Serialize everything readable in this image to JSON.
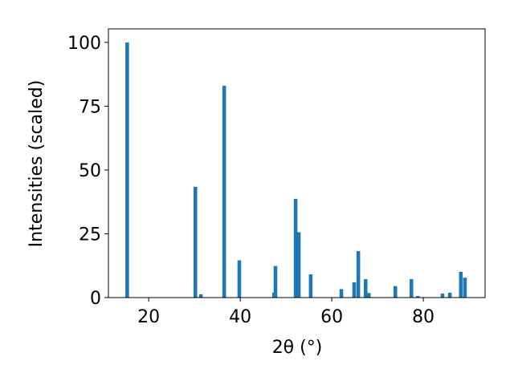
{
  "chart_data": {
    "type": "bar",
    "xlabel": "2θ (°)",
    "ylabel": "Intensities (scaled)",
    "x": [
      15.3,
      30.2,
      31.4,
      36.5,
      39.8,
      47.4,
      47.7,
      52.1,
      52.8,
      55.4,
      62.1,
      64.9,
      65.8,
      67.4,
      68.1,
      73.9,
      77.4,
      78.8,
      84.2,
      85.8,
      88.2,
      89.1
    ],
    "values": [
      100,
      43.4,
      1.3,
      83,
      14.6,
      2,
      12.4,
      38.7,
      25.6,
      9.1,
      3.3,
      6,
      18.2,
      7.2,
      1.8,
      4.5,
      7.2,
      0.6,
      1.6,
      1.9,
      10.1,
      7.8
    ],
    "color": "#1f77b4",
    "xlim": [
      11.2,
      93.5
    ],
    "xticks": [
      20,
      40,
      60,
      80
    ],
    "ylim": [
      0,
      105.3
    ],
    "yticks": [
      0,
      25,
      50,
      75,
      100
    ]
  }
}
